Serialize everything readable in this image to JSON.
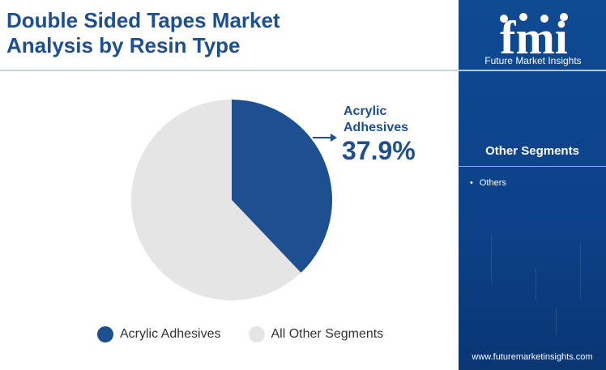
{
  "header": {
    "title_line1": "Double Sided Tapes Market",
    "title_line2": "Analysis by Resin Type"
  },
  "chart_data": {
    "type": "pie",
    "title": "Double Sided Tapes Market Analysis by Resin Type",
    "slices": [
      {
        "name": "Acrylic Adhesives",
        "value": 37.9,
        "color": "#1d4f91"
      },
      {
        "name": "All Other Segments",
        "value": 62.1,
        "color": "#e5e5e5"
      }
    ],
    "callout": {
      "label_line1": "Acrylic",
      "label_line2": "Adhesives",
      "value": "37.9%"
    },
    "legend": [
      "Acrylic Adhesives",
      "All Other Segments"
    ],
    "legend_placement": "bottom"
  },
  "sidebar": {
    "logo_letters": "fmi",
    "logo_name": "Future Market Insights",
    "heading": "Other Segments",
    "items": [
      "Others"
    ],
    "url": "www.futuremarketinsights.com"
  },
  "colors": {
    "brand_blue": "#1d4f91",
    "panel_blue": "#0c4189",
    "other_gray": "#e5e5e5"
  }
}
